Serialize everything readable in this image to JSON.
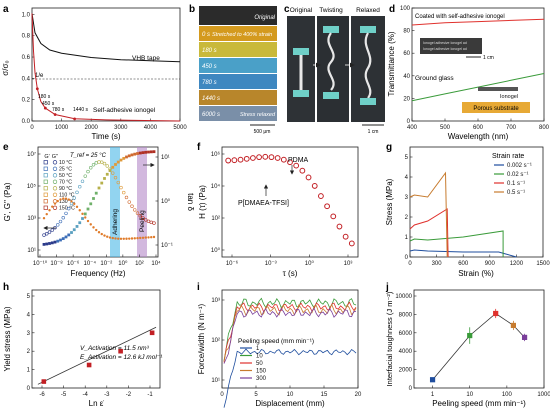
{
  "panels": {
    "a": {
      "label": "a",
      "ylabel": "σ/σ₀",
      "xlabel": "Time (s)",
      "xticks": [
        "0",
        "1000",
        "2000",
        "3000",
        "4000",
        "5000"
      ],
      "yticks": [
        "0.0",
        "0.2",
        "0.4",
        "0.6",
        "0.8",
        "1.0"
      ],
      "ref_label": "1/e",
      "curve_labels": [
        "VHB tape",
        "Self-adhesive ionogel"
      ],
      "point_labels": [
        "180 s",
        "450 s",
        "780 s",
        "1440 s"
      ]
    },
    "b": {
      "label": "b",
      "rows": [
        "Original",
        "0 s",
        "180 s",
        "450 s",
        "780 s",
        "1440 s",
        "6000 s"
      ],
      "notes": [
        "Stretched to 400% strain",
        "Stress relaxed"
      ],
      "scale": "500 μm"
    },
    "c": {
      "label": "c",
      "titles": [
        "Original",
        "Twisting",
        "Relaxed"
      ],
      "scale": "1 cm"
    },
    "d": {
      "label": "d",
      "ylabel": "Transmittance (%)",
      "xlabel": "Wavelength (nm)",
      "xticks": [
        "400",
        "500",
        "600",
        "700",
        "800"
      ],
      "yticks": [
        "0",
        "20",
        "40",
        "60",
        "80",
        "100"
      ],
      "labels": [
        "Coated with self-adhesive ionogel",
        "Ground glass",
        "Ionogel",
        "Porous substrate"
      ],
      "scale": "1 cm",
      "inset_text": [
        "Ionogel adhesive Ionogel ad",
        "Ionogel adhesive Ionogel ad"
      ]
    },
    "e": {
      "label": "e",
      "ylabel": "G', G'' (Pa)",
      "y2label": "tan δ",
      "xlabel": "Frequency (Hz)",
      "tref": "T_ref = 25 °C",
      "legend_header": [
        "G'",
        "G''"
      ],
      "legend": [
        "10 °C",
        "25 °C",
        "50 °C",
        "70 °C",
        "90 °C",
        "110 °C",
        "130 °C",
        "150 °C"
      ],
      "bands": [
        "Adhering",
        "Peeling"
      ],
      "xticks": [
        "10⁻¹⁰",
        "10⁻⁸",
        "10⁻⁶",
        "10⁻⁴",
        "10⁻²",
        "10⁰",
        "10²",
        "10⁴"
      ],
      "yticks": [
        "10¹",
        "10³",
        "10⁵",
        "10⁷"
      ],
      "y2ticks": [
        "10⁻¹",
        "10⁰",
        "10¹"
      ]
    },
    "f": {
      "label": "f",
      "ylabel": "H (τ) (Pa)",
      "xlabel": "τ (s)",
      "labels": [
        "PDMA",
        "P[DMAEA-TFSI]"
      ],
      "xticks": [
        "10⁻⁶",
        "10⁻³",
        "10⁰",
        "10³"
      ],
      "yticks": [
        "10⁰",
        "10²",
        "10⁴",
        "10⁶"
      ]
    },
    "g": {
      "label": "g",
      "ylabel": "Stress (MPa)",
      "xlabel": "Strain (%)",
      "legend_title": "Strain rate",
      "legend": [
        "0.002 s⁻¹",
        "0.02 s⁻¹",
        "0.1 s⁻¹",
        "0.5 s⁻¹"
      ],
      "xticks": [
        "0",
        "300",
        "600",
        "900",
        "1200",
        "1500"
      ],
      "yticks": [
        "0",
        "1",
        "2",
        "3",
        "4",
        "5"
      ]
    },
    "h": {
      "label": "h",
      "ylabel": "Yield stress (MPa)",
      "xlabel": "Ln ε̇",
      "xticks": [
        "-6",
        "-5",
        "-4",
        "-3",
        "-2",
        "-1"
      ],
      "yticks": [
        "0",
        "1",
        "2",
        "3",
        "4",
        "5"
      ],
      "note1": "V_Activation = 11.5 nm³",
      "note2": "E_Activation = 12.6 kJ mol⁻¹"
    },
    "i": {
      "label": "i",
      "ylabel": "Force/width (N m⁻¹)",
      "xlabel": "Displacement (mm)",
      "legend_title": "Peeling speed (mm min⁻¹)",
      "legend": [
        "1",
        "10",
        "50",
        "150",
        "300"
      ],
      "xticks": [
        "0",
        "5",
        "10",
        "15",
        "20"
      ],
      "yticks": [
        "10¹",
        "10²",
        "10³"
      ]
    },
    "j": {
      "label": "j",
      "ylabel": "Interfacial toughness (J m⁻²)",
      "xlabel": "Peeling speed (mm min⁻¹)",
      "xticks": [
        "1",
        "10",
        "100",
        "1000"
      ],
      "yticks": [
        "0",
        "2000",
        "4000",
        "6000",
        "8000",
        "10000"
      ]
    }
  },
  "colors": {
    "series": [
      "#1f4e9e",
      "#3a9b3a",
      "#e0312d",
      "#c77b2e",
      "#7a3f9a"
    ],
    "adhere_band": "#49b8e6",
    "peel_band": "#b488c8",
    "orange": "#e07b2a",
    "red": "#c21f24"
  },
  "chart_data": [
    {
      "panel": "a",
      "type": "line",
      "series": [
        {
          "name": "VHB tape",
          "x": [
            0,
            100,
            300,
            600,
            1000,
            2000,
            3000,
            4000,
            5000
          ],
          "y": [
            1.0,
            0.82,
            0.72,
            0.66,
            0.63,
            0.59,
            0.57,
            0.56,
            0.55
          ]
        },
        {
          "name": "Self-adhesive ionogel",
          "x": [
            0,
            50,
            100,
            180,
            300,
            450,
            780,
            1440,
            2500,
            5000
          ],
          "y": [
            1.0,
            0.65,
            0.45,
            0.3,
            0.18,
            0.12,
            0.06,
            0.02,
            0.01,
            0.0
          ]
        }
      ],
      "reference_y": 0.368,
      "xlim": [
        0,
        5000
      ],
      "ylim": [
        0,
        1.05
      ]
    },
    {
      "panel": "d",
      "type": "line",
      "series": [
        {
          "name": "Coated with self-adhesive ionogel",
          "x": [
            400,
            500,
            600,
            700,
            800
          ],
          "y": [
            85,
            87,
            88,
            89,
            90
          ]
        },
        {
          "name": "Ground glass",
          "x": [
            400,
            500,
            600,
            700,
            800
          ],
          "y": [
            18,
            24,
            30,
            36,
            42
          ]
        }
      ],
      "xlim": [
        400,
        800
      ],
      "ylim": [
        0,
        100
      ]
    },
    {
      "panel": "f",
      "type": "scatter",
      "x_log10": [
        -6.5,
        -6,
        -5.5,
        -5,
        -4.5,
        -4,
        -3.5,
        -3,
        -2.5,
        -2,
        -1.5,
        -1,
        -0.5,
        0,
        0.5,
        1,
        1.5,
        2,
        2.5,
        3,
        3.5
      ],
      "y_log10": [
        5.4,
        5.42,
        5.45,
        5.5,
        5.55,
        5.6,
        5.62,
        5.6,
        5.55,
        5.45,
        5.3,
        5.1,
        4.8,
        4.4,
        3.9,
        3.3,
        2.7,
        2.1,
        1.5,
        0.9,
        0.5
      ]
    },
    {
      "panel": "g",
      "type": "line",
      "series": [
        {
          "name": "0.002 s⁻¹",
          "x": [
            0,
            50,
            200,
            600,
            1000,
            1200
          ],
          "y": [
            0.3,
            0.35,
            0.3,
            0.25,
            0.25,
            0.0
          ]
        },
        {
          "name": "0.02 s⁻¹",
          "x": [
            0,
            50,
            200,
            600,
            1050,
            1050
          ],
          "y": [
            0.8,
            0.9,
            0.85,
            1.0,
            1.3,
            0.0
          ]
        },
        {
          "name": "0.1 s⁻¹",
          "x": [
            0,
            50,
            200,
            420,
            430
          ],
          "y": [
            1.4,
            1.6,
            1.8,
            2.4,
            0.0
          ]
        },
        {
          "name": "0.5 s⁻¹",
          "x": [
            0,
            50,
            200,
            400,
            420
          ],
          "y": [
            3.0,
            3.1,
            3.0,
            4.2,
            0.0
          ]
        }
      ],
      "xlim": [
        0,
        1500
      ],
      "ylim": [
        0,
        5
      ]
    },
    {
      "panel": "h",
      "type": "scatter",
      "x": [
        -6.2,
        -3.9,
        -2.3,
        -0.7
      ],
      "y": [
        0.35,
        1.25,
        2.0,
        3.0
      ],
      "fit": {
        "x": [
          -6.5,
          -0.5
        ],
        "y": [
          0.2,
          3.3
        ]
      },
      "xlim": [
        -6.8,
        -0.3
      ],
      "ylim": [
        0,
        5
      ]
    },
    {
      "panel": "j",
      "type": "scatter",
      "x": [
        1,
        10,
        50,
        150,
        300
      ],
      "y": [
        900,
        5700,
        8100,
        6800,
        5500
      ],
      "err": [
        0,
        900,
        500,
        500,
        400
      ],
      "xlim": [
        0.3,
        1000
      ],
      "ylim": [
        0,
        10000
      ]
    }
  ]
}
